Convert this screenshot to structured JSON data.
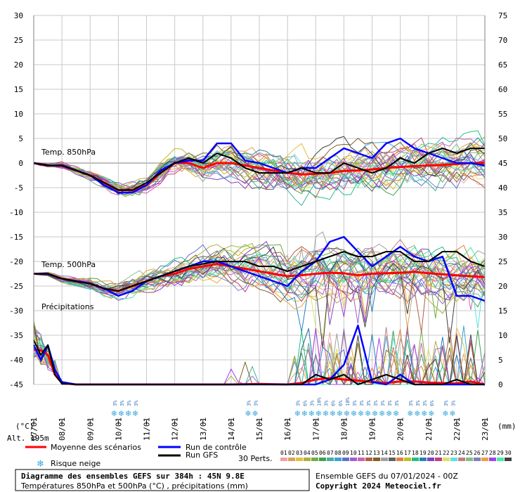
{
  "chart_data": {
    "type": "line",
    "title": "Diagramme des ensembles GEFS sur 384h : 45N 9.8E",
    "subtitle": "Températures 850hPa et 500hPa (°C) , précipitations (mm)",
    "run_label": "Ensemble GEFS du 07/01/2024 - 00Z",
    "copyright": "Copyright 2024 Meteociel.fr",
    "altitude_label": "Alt. 195m",
    "left_axis": {
      "unit": "(°C)",
      "ticks": [
        30,
        25,
        20,
        15,
        10,
        5,
        0,
        -5,
        -10,
        -15,
        -20,
        -25,
        -30,
        -35,
        -40,
        -45
      ],
      "ylim": [
        -45,
        30
      ]
    },
    "right_axis": {
      "unit": "(mm)",
      "ticks": [
        75,
        70,
        65,
        60,
        55,
        50,
        45,
        40,
        35,
        30,
        25,
        20,
        15,
        10,
        5,
        0
      ]
    },
    "x_ticks": [
      "07/01",
      "08/01",
      "09/01",
      "10/01",
      "11/01",
      "12/01",
      "13/01",
      "14/01",
      "15/01",
      "16/01",
      "17/01",
      "18/01",
      "19/01",
      "20/01",
      "21/01",
      "22/01",
      "23/01"
    ],
    "x_unit": "days",
    "xlim": [
      0,
      16
    ],
    "section_labels": [
      "Temp. 850hPa",
      "Temp. 500hPa",
      "Précipitations"
    ],
    "grid": true,
    "legend": {
      "mean": {
        "label": "Moyenne des scénarios",
        "color": "#ff0000"
      },
      "control": {
        "label": "Run de contrôle",
        "color": "#0000ff"
      },
      "gfs": {
        "label": "Run GFS",
        "color": "#000000"
      },
      "snow": {
        "label": "Risque neige",
        "color": "#38a8e0"
      },
      "perts_label": "30 Perts.",
      "perts": [
        "01",
        "02",
        "03",
        "04",
        "05",
        "06",
        "07",
        "08",
        "09",
        "10",
        "11",
        "12",
        "13",
        "14",
        "15",
        "16",
        "17",
        "18",
        "19",
        "20",
        "21",
        "22",
        "23",
        "24",
        "25",
        "26",
        "27",
        "28",
        "29",
        "30"
      ]
    },
    "snow_risk": [
      {
        "x": 2.86,
        "pct": "3%"
      },
      {
        "x": 3.11,
        "pct": "3%"
      },
      {
        "x": 3.36,
        "pct": "3%"
      },
      {
        "x": 3.61,
        "pct": "3%"
      },
      {
        "x": 7.61,
        "pct": "3%"
      },
      {
        "x": 7.86,
        "pct": "3%"
      },
      {
        "x": 9.36,
        "pct": "3%"
      },
      {
        "x": 9.61,
        "pct": "6%"
      },
      {
        "x": 9.86,
        "pct": "3%"
      },
      {
        "x": 10.11,
        "pct": "10%"
      },
      {
        "x": 10.36,
        "pct": "3%"
      },
      {
        "x": 10.61,
        "pct": "6%"
      },
      {
        "x": 10.86,
        "pct": "6%"
      },
      {
        "x": 11.11,
        "pct": "10%"
      },
      {
        "x": 11.36,
        "pct": "3%"
      },
      {
        "x": 11.61,
        "pct": "3%"
      },
      {
        "x": 11.86,
        "pct": "3%"
      },
      {
        "x": 12.11,
        "pct": "3%"
      },
      {
        "x": 12.36,
        "pct": "3%"
      },
      {
        "x": 12.61,
        "pct": "3%"
      },
      {
        "x": 12.86,
        "pct": "3%"
      },
      {
        "x": 13.36,
        "pct": "3%"
      },
      {
        "x": 13.61,
        "pct": "3%"
      },
      {
        "x": 13.86,
        "pct": "3%"
      },
      {
        "x": 14.11,
        "pct": "6%"
      },
      {
        "x": 14.61,
        "pct": "3%"
      },
      {
        "x": 14.86,
        "pct": "3%"
      }
    ],
    "series": [
      {
        "name": "Moyenne des scénarios",
        "key": "t850",
        "color": "#ff0000",
        "x": [
          0,
          0.5,
          1,
          1.5,
          2,
          2.5,
          3,
          3.5,
          4,
          4.5,
          5,
          5.5,
          6,
          6.5,
          7,
          7.5,
          8,
          8.5,
          9,
          9.5,
          10,
          10.5,
          11,
          11.5,
          12,
          12.5,
          13,
          13.5,
          14,
          14.5,
          15,
          15.5,
          16
        ],
        "y": [
          0,
          -0.5,
          -0.5,
          -1.5,
          -2.5,
          -4,
          -5.5,
          -5.5,
          -4.5,
          -2,
          0,
          0,
          -1,
          0,
          0,
          -0.5,
          -1,
          -1.5,
          -2,
          -2.3,
          -2.2,
          -2,
          -1.6,
          -1.5,
          -1.3,
          -1,
          -0.8,
          -0.6,
          -0.5,
          -0.4,
          -0.2,
          0,
          0
        ]
      },
      {
        "name": "Run de contrôle",
        "key": "t850",
        "color": "#0000ff",
        "x": [
          0,
          0.5,
          1,
          1.5,
          2,
          2.5,
          3,
          3.5,
          4,
          4.5,
          5,
          5.5,
          6,
          6.5,
          7,
          7.5,
          8,
          8.5,
          9,
          9.5,
          10,
          10.5,
          11,
          11.5,
          12,
          12.5,
          13,
          13.5,
          14,
          14.5,
          15,
          15.5,
          16
        ],
        "y": [
          0,
          -0.5,
          -0.5,
          -1.5,
          -2.5,
          -4.5,
          -6,
          -6,
          -4.5,
          -1.5,
          0,
          0.5,
          0.5,
          4,
          4,
          0.5,
          0,
          -1,
          -2,
          -1,
          -1,
          1,
          3,
          2,
          1,
          4,
          5,
          3,
          2,
          1,
          0,
          0,
          -0.5
        ]
      },
      {
        "name": "Run GFS",
        "key": "t850",
        "color": "#000000",
        "x": [
          0,
          0.5,
          1,
          1.5,
          2,
          2.5,
          3,
          3.5,
          4,
          4.5,
          5,
          5.5,
          6,
          6.5,
          7,
          7.5,
          8,
          8.5,
          9,
          9.5,
          10,
          10.5,
          11,
          11.5,
          12,
          12.5,
          13,
          13.5,
          14,
          14.5,
          15,
          15.5,
          16
        ],
        "y": [
          0,
          -0.5,
          -0.5,
          -1.5,
          -2.5,
          -4,
          -5.5,
          -5.5,
          -4,
          -2,
          0,
          1,
          0,
          2,
          1,
          -1,
          -2,
          -2,
          -2,
          -1,
          -2,
          -2,
          0,
          -1,
          -2,
          -1,
          1,
          0,
          2,
          3,
          2,
          3,
          3
        ]
      },
      {
        "name": "Moyenne des scénarios",
        "key": "t500",
        "color": "#ff0000",
        "x": [
          0,
          0.5,
          1,
          1.5,
          2,
          2.5,
          3,
          3.5,
          4,
          4.5,
          5,
          5.5,
          6,
          6.5,
          7,
          7.5,
          8,
          8.5,
          9,
          9.5,
          10,
          10.5,
          11,
          11.5,
          12,
          12.5,
          13,
          13.5,
          14,
          14.5,
          15,
          15.5,
          16
        ],
        "y": [
          -22.5,
          -22.5,
          -23.5,
          -24,
          -24.5,
          -25.5,
          -26,
          -25,
          -24,
          -23,
          -22.5,
          -21.5,
          -21,
          -20.5,
          -21,
          -21.5,
          -22,
          -22.5,
          -23,
          -22.8,
          -22.5,
          -22.3,
          -22.4,
          -22.8,
          -22.5,
          -22.4,
          -22.3,
          -22.1,
          -22.4,
          -22.6,
          -22.8,
          -23,
          -23.2
        ]
      },
      {
        "name": "Run de contrôle",
        "key": "t500",
        "color": "#0000ff",
        "x": [
          0,
          0.5,
          1,
          1.5,
          2,
          2.5,
          3,
          3.5,
          4,
          4.5,
          5,
          5.5,
          6,
          6.5,
          7,
          7.5,
          8,
          8.5,
          9,
          9.5,
          10,
          10.5,
          11,
          11.5,
          12,
          12.5,
          13,
          13.5,
          14,
          14.5,
          15,
          15.5,
          16
        ],
        "y": [
          -22.5,
          -22.5,
          -23.5,
          -24,
          -24.5,
          -25.5,
          -27,
          -26,
          -24,
          -23,
          -22,
          -21,
          -20,
          -20,
          -21,
          -22,
          -23,
          -24,
          -25,
          -22,
          -20,
          -16,
          -15,
          -18,
          -21,
          -19,
          -17,
          -19,
          -20,
          -19,
          -27,
          -27,
          -28
        ]
      },
      {
        "name": "Run GFS",
        "key": "t500",
        "color": "#000000",
        "x": [
          0,
          0.5,
          1,
          1.5,
          2,
          2.5,
          3,
          3.5,
          4,
          4.5,
          5,
          5.5,
          6,
          6.5,
          7,
          7.5,
          8,
          8.5,
          9,
          9.5,
          10,
          10.5,
          11,
          11.5,
          12,
          12.5,
          13,
          13.5,
          14,
          14.5,
          15,
          15.5,
          16
        ],
        "y": [
          -22.5,
          -22.5,
          -23.5,
          -24,
          -24.5,
          -25.5,
          -26,
          -25,
          -24,
          -23,
          -22,
          -21,
          -20.5,
          -20,
          -20,
          -20,
          -21,
          -21,
          -22,
          -21,
          -20,
          -19,
          -18,
          -19,
          -19,
          -18,
          -18,
          -20,
          -20,
          -18,
          -18,
          -20,
          -21
        ]
      },
      {
        "name": "Moyenne des scénarios",
        "key": "precip",
        "color": "#ff0000",
        "x": [
          0,
          0.25,
          0.5,
          0.75,
          1,
          1.5,
          2,
          3,
          4,
          5,
          6,
          7,
          8,
          9,
          9.5,
          10,
          10.5,
          11,
          11.5,
          12,
          12.5,
          13,
          13.5,
          14,
          14.5,
          15,
          15.5,
          16
        ],
        "y": [
          7,
          7,
          6,
          2,
          0.3,
          0,
          0,
          0,
          0,
          0,
          0,
          0,
          0.1,
          0,
          0.3,
          1,
          1.3,
          1,
          0.8,
          0.5,
          0.3,
          0.6,
          0.6,
          0.4,
          0.3,
          0.2,
          0.6,
          0
        ]
      },
      {
        "name": "Run de contrôle",
        "key": "precip",
        "color": "#0000ff",
        "x": [
          0,
          0.25,
          0.5,
          0.75,
          1,
          1.5,
          2,
          3,
          4,
          5,
          6,
          7,
          8,
          9,
          9.5,
          10,
          10.5,
          11,
          11.5,
          12,
          12.5,
          13,
          13.5,
          14,
          14.5,
          15,
          15.5,
          16
        ],
        "y": [
          8,
          5,
          8,
          3,
          0.5,
          0,
          0,
          0,
          0,
          0,
          0,
          0,
          0,
          0,
          0,
          0,
          1,
          4,
          12,
          0.5,
          0,
          2,
          0,
          0,
          0,
          0,
          0,
          0
        ]
      },
      {
        "name": "Run GFS",
        "key": "precip",
        "color": "#000000",
        "x": [
          0,
          0.25,
          0.5,
          0.75,
          1,
          1.5,
          2,
          3,
          4,
          5,
          6,
          7,
          8,
          9,
          9.5,
          10,
          10.5,
          11,
          11.5,
          12,
          12.5,
          13,
          13.5,
          14,
          14.5,
          15,
          15.5,
          16
        ],
        "y": [
          9,
          6,
          8,
          2,
          0.2,
          0,
          0,
          0,
          0,
          0,
          0,
          0,
          0,
          0,
          0,
          2,
          1,
          2,
          0,
          1,
          2,
          1,
          0,
          0,
          0,
          1,
          0,
          0
        ]
      }
    ]
  }
}
